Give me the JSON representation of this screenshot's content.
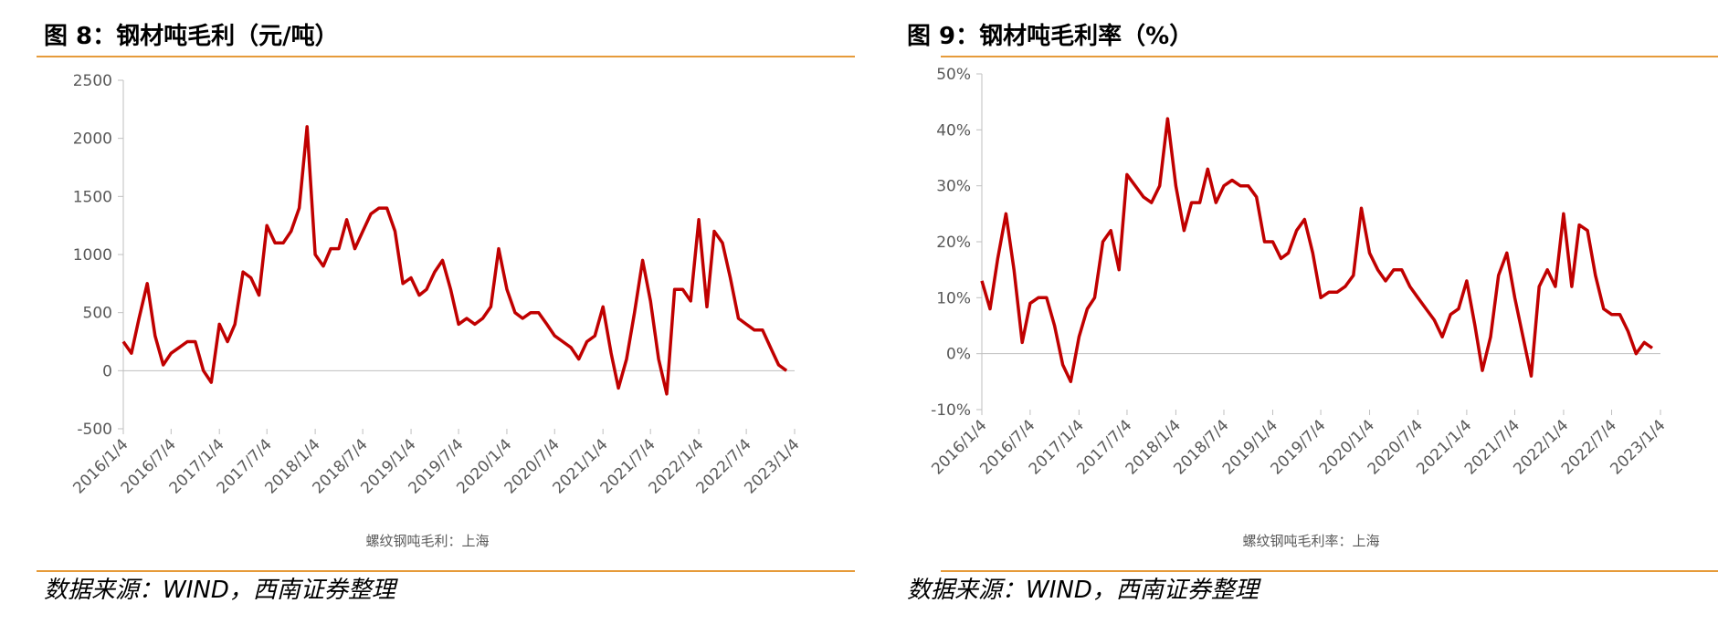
{
  "chart_data": [
    {
      "type": "line",
      "title": "图 8：钢材吨毛利（元/吨）",
      "source": "数据来源：WIND，西南证券整理",
      "x": [
        "2016/1/4",
        "2016/2/4",
        "2016/3/4",
        "2016/4/4",
        "2016/5/4",
        "2016/6/4",
        "2016/7/4",
        "2016/8/4",
        "2016/9/4",
        "2016/10/4",
        "2016/11/4",
        "2016/12/4",
        "2017/1/4",
        "2017/2/4",
        "2017/3/4",
        "2017/4/4",
        "2017/5/4",
        "2017/6/4",
        "2017/7/4",
        "2017/8/4",
        "2017/9/4",
        "2017/10/4",
        "2017/11/4",
        "2017/12/4",
        "2018/1/4",
        "2018/2/4",
        "2018/3/4",
        "2018/4/4",
        "2018/5/4",
        "2018/6/4",
        "2018/7/4",
        "2018/8/4",
        "2018/9/4",
        "2018/10/4",
        "2018/11/4",
        "2018/12/4",
        "2019/1/4",
        "2019/2/4",
        "2019/3/4",
        "2019/4/4",
        "2019/5/4",
        "2019/6/4",
        "2019/7/4",
        "2019/8/4",
        "2019/9/4",
        "2019/10/4",
        "2019/11/4",
        "2019/12/4",
        "2020/1/4",
        "2020/2/4",
        "2020/3/4",
        "2020/4/4",
        "2020/5/4",
        "2020/6/4",
        "2020/7/4",
        "2020/8/4",
        "2020/9/4",
        "2020/10/4",
        "2020/11/4",
        "2020/12/4",
        "2021/1/4",
        "2021/2/4",
        "2021/3/4",
        "2021/4/4",
        "2021/5/4",
        "2021/6/4",
        "2021/7/4",
        "2021/8/4",
        "2021/9/4",
        "2021/10/4",
        "2021/11/4",
        "2021/12/4",
        "2022/1/4",
        "2022/2/4",
        "2022/3/4",
        "2022/4/4",
        "2022/5/4",
        "2022/6/4",
        "2022/7/4",
        "2022/8/4",
        "2022/9/4",
        "2022/10/4",
        "2022/11/4",
        "2022/12/4"
      ],
      "series": [
        {
          "name": "螺纹钢吨毛利：上海",
          "color": "#c00000",
          "values": [
            250,
            150,
            450,
            750,
            300,
            50,
            150,
            200,
            250,
            250,
            0,
            -100,
            400,
            250,
            400,
            850,
            800,
            650,
            1250,
            1100,
            1100,
            1200,
            1400,
            2100,
            1000,
            900,
            1050,
            1050,
            1300,
            1050,
            1200,
            1350,
            1400,
            1400,
            1200,
            750,
            800,
            650,
            700,
            850,
            950,
            700,
            400,
            450,
            400,
            450,
            550,
            1050,
            700,
            500,
            450,
            500,
            500,
            400,
            300,
            250,
            200,
            100,
            250,
            300,
            550,
            150,
            -150,
            100,
            500,
            950,
            600,
            100,
            -200,
            700,
            700,
            600,
            1300,
            550,
            1200,
            1100,
            800,
            450,
            400,
            350,
            350,
            200,
            50,
            0
          ]
        }
      ],
      "xlim": [
        "2016/1/4",
        "2023/1/4"
      ],
      "xticks": [
        "2016/1/4",
        "2016/7/4",
        "2017/1/4",
        "2017/7/4",
        "2018/1/4",
        "2018/7/4",
        "2019/1/4",
        "2019/7/4",
        "2020/1/4",
        "2020/7/4",
        "2021/1/4",
        "2021/7/4",
        "2022/1/4",
        "2022/7/4",
        "2023/1/4"
      ],
      "ylim": [
        -500,
        2500
      ],
      "yticks": [
        -500,
        0,
        500,
        1000,
        1500,
        2000,
        2500
      ]
    },
    {
      "type": "line",
      "title": "图 9：钢材吨毛利率（%）",
      "source": "数据来源：WIND，西南证券整理",
      "x": [
        "2016/1/4",
        "2016/2/4",
        "2016/3/4",
        "2016/4/4",
        "2016/5/4",
        "2016/6/4",
        "2016/7/4",
        "2016/8/4",
        "2016/9/4",
        "2016/10/4",
        "2016/11/4",
        "2016/12/4",
        "2017/1/4",
        "2017/2/4",
        "2017/3/4",
        "2017/4/4",
        "2017/5/4",
        "2017/6/4",
        "2017/7/4",
        "2017/8/4",
        "2017/9/4",
        "2017/10/4",
        "2017/11/4",
        "2017/12/4",
        "2018/1/4",
        "2018/2/4",
        "2018/3/4",
        "2018/4/4",
        "2018/5/4",
        "2018/6/4",
        "2018/7/4",
        "2018/8/4",
        "2018/9/4",
        "2018/10/4",
        "2018/11/4",
        "2018/12/4",
        "2019/1/4",
        "2019/2/4",
        "2019/3/4",
        "2019/4/4",
        "2019/5/4",
        "2019/6/4",
        "2019/7/4",
        "2019/8/4",
        "2019/9/4",
        "2019/10/4",
        "2019/11/4",
        "2019/12/4",
        "2020/1/4",
        "2020/2/4",
        "2020/3/4",
        "2020/4/4",
        "2020/5/4",
        "2020/6/4",
        "2020/7/4",
        "2020/8/4",
        "2020/9/4",
        "2020/10/4",
        "2020/11/4",
        "2020/12/4",
        "2021/1/4",
        "2021/2/4",
        "2021/3/4",
        "2021/4/4",
        "2021/5/4",
        "2021/6/4",
        "2021/7/4",
        "2021/8/4",
        "2021/9/4",
        "2021/10/4",
        "2021/11/4",
        "2021/12/4",
        "2022/1/4",
        "2022/2/4",
        "2022/3/4",
        "2022/4/4",
        "2022/5/4",
        "2022/6/4",
        "2022/7/4",
        "2022/8/4",
        "2022/9/4",
        "2022/10/4",
        "2022/11/4",
        "2022/12/4"
      ],
      "series": [
        {
          "name": "螺纹钢吨毛利率：上海",
          "color": "#c00000",
          "values": [
            13,
            8,
            17,
            25,
            15,
            2,
            9,
            10,
            10,
            5,
            -2,
            -5,
            3,
            8,
            10,
            20,
            22,
            15,
            32,
            30,
            28,
            27,
            30,
            42,
            30,
            22,
            27,
            27,
            33,
            27,
            30,
            31,
            30,
            30,
            28,
            20,
            20,
            17,
            18,
            22,
            24,
            18,
            10,
            11,
            11,
            12,
            14,
            26,
            18,
            15,
            13,
            15,
            15,
            12,
            10,
            8,
            6,
            3,
            7,
            8,
            13,
            5,
            -3,
            3,
            14,
            18,
            10,
            3,
            -4,
            12,
            15,
            12,
            25,
            12,
            23,
            22,
            14,
            8,
            7,
            7,
            4,
            0,
            2,
            1
          ]
        }
      ],
      "xlim": [
        "2016/1/4",
        "2023/1/4"
      ],
      "xticks": [
        "2016/1/4",
        "2016/7/4",
        "2017/1/4",
        "2017/7/4",
        "2018/1/4",
        "2018/7/4",
        "2019/1/4",
        "2019/7/4",
        "2020/1/4",
        "2020/7/4",
        "2021/1/4",
        "2021/7/4",
        "2022/1/4",
        "2022/7/4",
        "2023/1/4"
      ],
      "ylim": [
        -10,
        50
      ],
      "yticks": [
        {
          "value": -10,
          "label": "-10%"
        },
        {
          "value": 0,
          "label": "0%"
        },
        {
          "value": 10,
          "label": "10%"
        },
        {
          "value": 20,
          "label": "20%"
        },
        {
          "value": 30,
          "label": "30%"
        },
        {
          "value": 40,
          "label": "40%"
        },
        {
          "value": 50,
          "label": "50%"
        }
      ]
    }
  ]
}
